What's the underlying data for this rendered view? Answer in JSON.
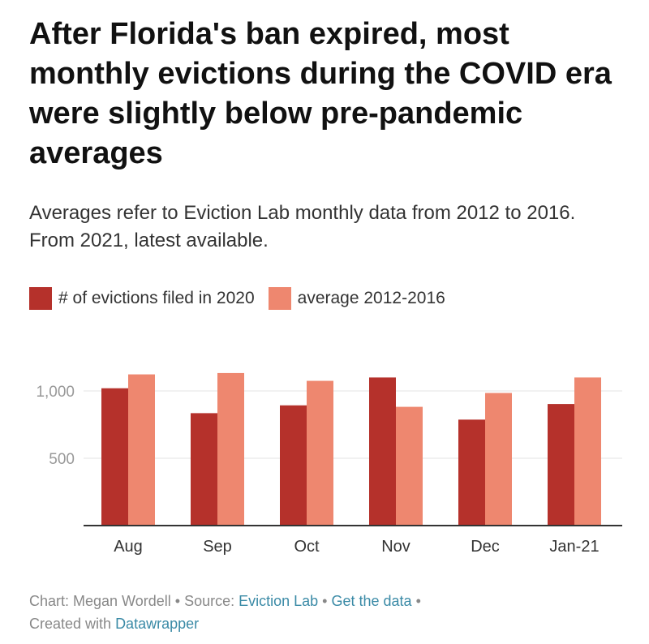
{
  "title": "After Florida's ban expired, most monthly evictions during the COVID era were slightly below pre-pandemic averages",
  "subtitle": "Averages refer to Eviction Lab monthly data from 2012 to 2016. From 2021, latest available.",
  "colors": {
    "series_2020": "#b5312b",
    "series_average": "#ee876f",
    "gridline": "#e3e3e3",
    "baseline": "#333333",
    "link": "#3a8aa6"
  },
  "footer": {
    "chart_prefix": "Chart: Megan Wordell",
    "sep1": " • ",
    "source_prefix": "Source: ",
    "source_link": "Eviction Lab",
    "sep2": " • ",
    "data_link": "Get the data",
    "sep3": " •",
    "created_prefix": "Created with ",
    "created_link": "Datawrapper"
  },
  "chart_data": {
    "type": "bar",
    "categories": [
      "Aug",
      "Sep",
      "Oct",
      "Nov",
      "Dec",
      "Jan-21"
    ],
    "series": [
      {
        "name": "# of evictions filed in 2020",
        "values": [
          1020,
          835,
          893,
          1100,
          787,
          903
        ]
      },
      {
        "name": "average 2012-2016",
        "values": [
          1123,
          1133,
          1075,
          882,
          985,
          1100
        ]
      }
    ],
    "yticks": [
      500,
      1000
    ],
    "ytick_labels": [
      "500",
      "1,000"
    ],
    "ylim": [
      0,
      1250
    ],
    "grid": true,
    "legend": "top-left",
    "xlabel": "",
    "ylabel": ""
  }
}
